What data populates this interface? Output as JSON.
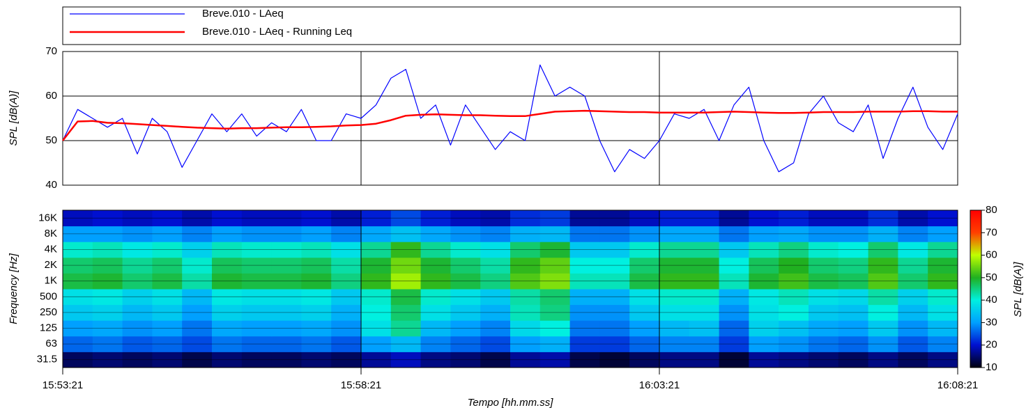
{
  "chart_data": [
    {
      "type": "line",
      "ylabel": "SPL [dB(A)]",
      "ylim": [
        40,
        70
      ],
      "yticks": [
        40,
        50,
        60,
        70
      ],
      "grid": true,
      "legend": "top",
      "x": [
        "15:53:21",
        "15:53:36",
        "15:53:51",
        "15:54:06",
        "15:54:21",
        "15:54:36",
        "15:54:51",
        "15:55:06",
        "15:55:21",
        "15:55:36",
        "15:55:51",
        "15:56:06",
        "15:56:21",
        "15:56:36",
        "15:56:51",
        "15:57:06",
        "15:57:21",
        "15:57:36",
        "15:57:51",
        "15:58:06",
        "15:58:21",
        "15:58:36",
        "15:58:51",
        "15:59:06",
        "15:59:21",
        "15:59:36",
        "15:59:51",
        "16:00:06",
        "16:00:21",
        "16:00:36",
        "16:00:51",
        "16:01:06",
        "16:01:21",
        "16:01:36",
        "16:01:51",
        "16:02:06",
        "16:02:21",
        "16:02:36",
        "16:02:51",
        "16:03:06",
        "16:03:21",
        "16:03:36",
        "16:03:51",
        "16:04:06",
        "16:04:21",
        "16:04:36",
        "16:04:51",
        "16:05:06",
        "16:05:21",
        "16:05:36",
        "16:05:51",
        "16:06:06",
        "16:06:21",
        "16:06:36",
        "16:06:51",
        "16:07:06",
        "16:07:21",
        "16:07:36",
        "16:07:51",
        "16:08:06",
        "16:08:21"
      ],
      "series": [
        {
          "name": "Breve.010 - LAeq",
          "color": "#0000ff",
          "width": 1.2,
          "values": [
            50,
            57,
            55,
            53,
            55,
            47,
            55,
            52,
            44,
            50,
            56,
            52,
            56,
            51,
            54,
            52,
            57,
            50,
            50,
            56,
            55,
            58,
            64,
            66,
            55,
            58,
            49,
            58,
            53,
            48,
            52,
            50,
            67,
            60,
            62,
            60,
            50,
            43,
            48,
            46,
            50,
            56,
            55,
            57,
            50,
            58,
            62,
            50,
            43,
            45,
            56,
            60,
            54,
            52,
            58,
            46,
            55,
            62,
            53,
            48,
            56
          ]
        },
        {
          "name": "Breve.010 - LAeq - Running Leq",
          "color": "#ff0000",
          "width": 2.5,
          "values": [
            50,
            54.3,
            54.4,
            54.0,
            53.9,
            53.7,
            53.5,
            53.3,
            53.1,
            52.9,
            52.8,
            52.7,
            52.8,
            52.8,
            52.9,
            53.0,
            53.0,
            53.1,
            53.2,
            53.4,
            53.5,
            53.8,
            54.6,
            55.6,
            55.8,
            55.9,
            55.8,
            55.7,
            55.7,
            55.6,
            55.5,
            55.5,
            56.0,
            56.5,
            56.6,
            56.7,
            56.6,
            56.5,
            56.4,
            56.4,
            56.3,
            56.3,
            56.3,
            56.3,
            56.4,
            56.5,
            56.4,
            56.3,
            56.2,
            56.2,
            56.3,
            56.4,
            56.4,
            56.4,
            56.5,
            56.5,
            56.5,
            56.6,
            56.6,
            56.5,
            56.5
          ]
        }
      ]
    },
    {
      "type": "heatmap",
      "xlabel": "Tempo [hh.mm.ss]",
      "ylabel": "Frequency [Hz]",
      "xlim": [
        "15:53:21",
        "16:08:21"
      ],
      "xticks": [
        "15:53:21",
        "15:58:21",
        "16:03:21",
        "16:08:21"
      ],
      "categories": [
        "31.5",
        "63",
        "125",
        "250",
        "500",
        "1K",
        "2K",
        "4K",
        "8K",
        "16K"
      ],
      "x_edges": [
        "15:53:21",
        "15:53:51",
        "15:54:21",
        "15:54:51",
        "15:55:21",
        "15:55:51",
        "15:56:21",
        "15:56:51",
        "15:57:21",
        "15:57:51",
        "15:58:21",
        "15:58:51",
        "15:59:21",
        "15:59:51",
        "16:00:21",
        "16:00:51",
        "16:01:21",
        "16:01:51",
        "16:02:21",
        "16:02:51",
        "16:03:21",
        "16:03:51",
        "16:04:21",
        "16:04:51",
        "16:05:21",
        "16:05:51",
        "16:06:21",
        "16:06:51",
        "16:07:21",
        "16:07:51",
        "16:08:21"
      ],
      "z": [
        [
          14,
          15,
          14,
          15,
          13,
          15,
          14,
          14,
          15,
          14,
          17,
          19,
          16,
          15,
          13,
          17,
          18,
          13,
          12,
          14,
          16,
          16,
          12,
          17,
          16,
          15,
          14,
          16,
          14,
          16
        ],
        [
          26,
          27,
          25,
          26,
          24,
          27,
          26,
          26,
          27,
          25,
          30,
          33,
          28,
          26,
          24,
          30,
          32,
          23,
          23,
          26,
          28,
          28,
          23,
          30,
          29,
          27,
          26,
          29,
          25,
          28
        ],
        [
          30,
          31,
          29,
          30,
          27,
          31,
          30,
          30,
          31,
          29,
          38,
          44,
          33,
          30,
          28,
          37,
          40,
          27,
          27,
          30,
          33,
          34,
          26,
          36,
          34,
          31,
          30,
          35,
          29,
          33
        ],
        [
          35,
          36,
          33,
          35,
          30,
          36,
          35,
          35,
          36,
          32,
          40,
          46,
          38,
          35,
          32,
          42,
          45,
          29,
          29,
          35,
          38,
          38,
          29,
          38,
          40,
          35,
          34,
          40,
          33,
          38
        ],
        [
          38,
          39,
          36,
          38,
          33,
          39,
          38,
          38,
          39,
          35,
          41,
          48,
          41,
          38,
          35,
          43,
          46,
          32,
          32,
          38,
          41,
          41,
          32,
          39,
          42,
          38,
          37,
          43,
          36,
          41
        ],
        [
          48,
          49,
          46,
          48,
          43,
          49,
          48,
          48,
          49,
          45,
          51,
          58,
          51,
          48,
          45,
          53,
          56,
          42,
          42,
          48,
          51,
          51,
          42,
          49,
          52,
          48,
          47,
          53,
          46,
          51
        ],
        [
          46,
          47,
          44,
          46,
          41,
          47,
          46,
          46,
          47,
          43,
          49,
          55,
          49,
          46,
          43,
          51,
          54,
          40,
          40,
          46,
          49,
          49,
          40,
          47,
          50,
          46,
          45,
          51,
          44,
          49
        ],
        [
          41,
          42,
          39,
          41,
          36,
          42,
          41,
          41,
          42,
          38,
          44,
          51,
          44,
          41,
          38,
          46,
          49,
          35,
          35,
          41,
          44,
          44,
          35,
          42,
          45,
          41,
          40,
          46,
          39,
          44
        ],
        [
          30,
          30,
          29,
          30,
          28,
          30,
          29,
          29,
          30,
          28,
          31,
          34,
          31,
          29,
          28,
          32,
          33,
          27,
          27,
          29,
          31,
          31,
          27,
          30,
          31,
          29,
          29,
          32,
          28,
          30
        ],
        [
          19,
          20,
          19,
          20,
          18,
          20,
          19,
          19,
          20,
          18,
          21,
          24,
          21,
          19,
          18,
          22,
          23,
          17,
          17,
          19,
          21,
          21,
          17,
          20,
          21,
          19,
          19,
          22,
          18,
          20
        ]
      ],
      "zlabel": "SPL [dB(A)]",
      "zlim": [
        10,
        80
      ],
      "zticks": [
        10,
        20,
        30,
        40,
        50,
        60,
        70,
        80
      ],
      "colormap": [
        "#000010",
        "#0010d0",
        "#00a0ff",
        "#00f0e0",
        "#20b020",
        "#c0ff00",
        "#ff4000",
        "#ff0000"
      ]
    }
  ]
}
